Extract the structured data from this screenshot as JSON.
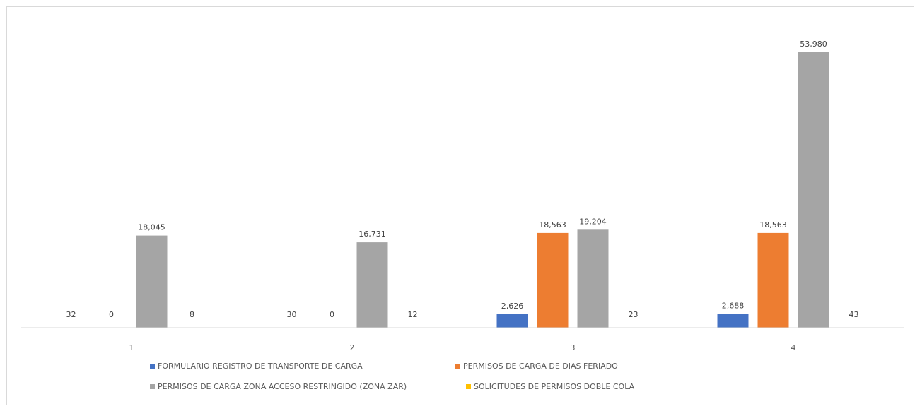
{
  "chart_data": {
    "type": "bar",
    "title": "",
    "xlabel": "",
    "ylabel": "",
    "categories": [
      "1",
      "2",
      "3",
      "4"
    ],
    "series": [
      {
        "name": "FORMULARIO REGISTRO DE TRANSPORTE DE CARGA",
        "color": "#4472c4",
        "values": [
          32,
          30,
          2626,
          2688
        ],
        "labels": [
          "32",
          "30",
          "2,626",
          "2,688"
        ]
      },
      {
        "name": "PERMISOS DE CARGA DE DIAS FERIADO",
        "color": "#ed7d31",
        "values": [
          0,
          0,
          18563,
          18563
        ],
        "labels": [
          "0",
          "0",
          "18,563",
          "18,563"
        ]
      },
      {
        "name": "PERMISOS DE CARGA ZONA ACCESO RESTRINGIDO (ZONA ZAR)",
        "color": "#a5a5a5",
        "values": [
          18045,
          16731,
          19204,
          53980
        ],
        "labels": [
          "18,045",
          "16,731",
          "19,204",
          "53,980"
        ]
      },
      {
        "name": "SOLICITUDES DE PERMISOS DOBLE COLA",
        "color": "#ffc000",
        "values": [
          8,
          12,
          23,
          43
        ],
        "labels": [
          "8",
          "12",
          "23",
          "43"
        ]
      }
    ],
    "ylim": [
      0,
      60000
    ],
    "grid": false,
    "legend_position": "bottom"
  }
}
